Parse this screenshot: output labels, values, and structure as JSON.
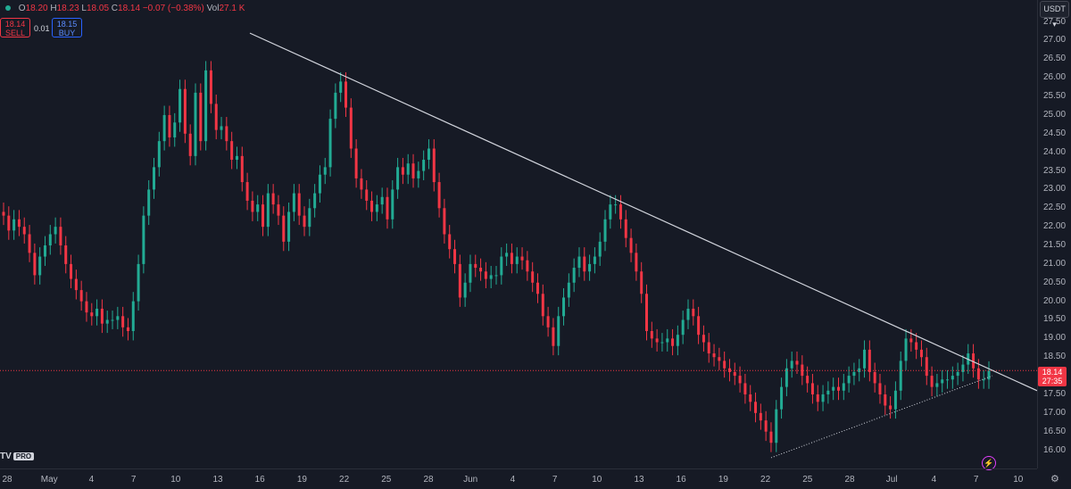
{
  "header": {
    "open_label": "O",
    "open": "18.20",
    "high_label": "H",
    "high": "18.23",
    "low_label": "L",
    "low": "18.05",
    "close_label": "C",
    "close": "18.14",
    "change": "−0.07 (−0.38%)",
    "vol_label": "Vol",
    "vol": "27.1 K"
  },
  "trade": {
    "sell_price": "18.14",
    "sell_label": "SELL",
    "spread": "0.01",
    "buy_price": "18.15",
    "buy_label": "BUY"
  },
  "currency": "USDT",
  "current_price": {
    "price": "18.14",
    "countdown": "27:35"
  },
  "logo": {
    "text": "TV",
    "badge": "PRO"
  },
  "colors": {
    "up": "#22ab94",
    "down": "#f23645",
    "trendline": "#d1d4dc",
    "background": "#161a25"
  },
  "icons": {
    "bolt": "lightning-icon",
    "settings": "gear-icon"
  },
  "chart_data": {
    "type": "line",
    "series": [
      {
        "values": [
          22.3,
          21.9,
          22.2,
          22.0,
          21.8,
          21.3,
          20.7,
          21.2,
          21.5,
          21.8,
          22.0,
          21.5,
          21.0,
          20.6,
          20.3,
          20.0,
          19.7,
          19.6,
          19.8,
          19.4,
          19.5,
          19.5,
          19.6,
          19.3,
          19.2,
          20.0,
          21.0,
          22.3,
          23.0,
          23.6,
          24.3,
          25.0,
          24.4,
          24.8,
          25.7,
          24.5,
          23.9,
          25.6,
          24.3,
          26.2,
          25.3,
          24.6,
          24.7,
          24.3,
          23.8,
          23.9,
          23.2,
          22.7,
          22.4,
          22.6,
          22.0,
          22.9,
          22.6,
          22.3,
          21.6,
          22.4,
          22.9,
          22.3,
          22.0,
          22.5,
          22.9,
          23.4,
          23.6,
          24.9,
          25.6,
          25.9,
          25.2,
          24.1,
          23.3,
          23.0,
          22.7,
          22.4,
          22.6,
          22.8,
          22.2,
          23.0,
          23.6,
          23.4,
          23.7,
          23.3,
          23.5,
          23.8,
          24.1,
          23.2,
          22.5,
          21.8,
          21.4,
          21.0,
          20.1,
          20.5,
          21.0,
          20.9,
          20.8,
          20.6,
          20.7,
          20.7,
          21.2,
          21.3,
          21.0,
          21.2,
          21.1,
          20.8,
          20.5,
          20.2,
          19.6,
          19.3,
          18.8,
          19.6,
          20.1,
          20.5,
          20.9,
          21.2,
          20.8,
          21.0,
          21.2,
          21.6,
          22.2,
          22.6,
          22.6,
          22.2,
          21.7,
          21.3,
          20.8,
          20.2,
          19.2,
          19.0,
          18.9,
          18.9,
          19.0,
          18.8,
          19.1,
          19.5,
          19.8,
          19.6,
          19.1,
          18.9,
          18.6,
          18.5,
          18.4,
          18.2,
          18.1,
          18.0,
          17.8,
          17.5,
          17.3,
          17.0,
          16.8,
          16.5,
          16.2,
          17.1,
          17.7,
          18.2,
          18.4,
          18.3,
          18.0,
          17.8,
          17.5,
          17.3,
          17.5,
          17.6,
          17.7,
          17.6,
          17.8,
          18.0,
          18.1,
          18.2,
          18.7,
          18.1,
          17.8,
          17.5,
          17.2,
          17.1,
          17.6,
          18.4,
          19.0,
          18.9,
          18.7,
          18.5,
          18.0,
          17.7,
          17.8,
          17.9,
          17.9,
          18.0,
          18.1,
          18.3,
          18.6,
          18.2,
          17.9,
          17.9,
          18.14
        ],
        "min": [
          16.0,
          15.8
        ]
      }
    ],
    "trendlines": [
      {
        "from": [
          "Apr 15",
          27.2
        ],
        "to": [
          "Jul 10",
          17.6
        ],
        "style": "solid"
      },
      {
        "from": [
          "Jun 22",
          15.8
        ],
        "to": [
          "Jul 8",
          18.0
        ],
        "style": "dotted"
      }
    ],
    "current_price_line": 18.14,
    "y_ticks": [
      "27.50",
      "27.00",
      "26.50",
      "26.00",
      "25.50",
      "25.00",
      "24.50",
      "24.00",
      "23.50",
      "23.00",
      "22.50",
      "22.00",
      "21.50",
      "21.00",
      "20.50",
      "20.00",
      "19.50",
      "19.00",
      "18.50",
      "18.00",
      "17.50",
      "17.00",
      "16.50",
      "16.00"
    ],
    "x_ticks": [
      "28",
      "May",
      "4",
      "7",
      "10",
      "13",
      "16",
      "19",
      "22",
      "25",
      "28",
      "Jun",
      "4",
      "7",
      "10",
      "13",
      "16",
      "19",
      "22",
      "25",
      "28",
      "Jul",
      "4",
      "7",
      "10"
    ],
    "ylim": [
      15.75,
      27.85
    ],
    "grid": false
  }
}
